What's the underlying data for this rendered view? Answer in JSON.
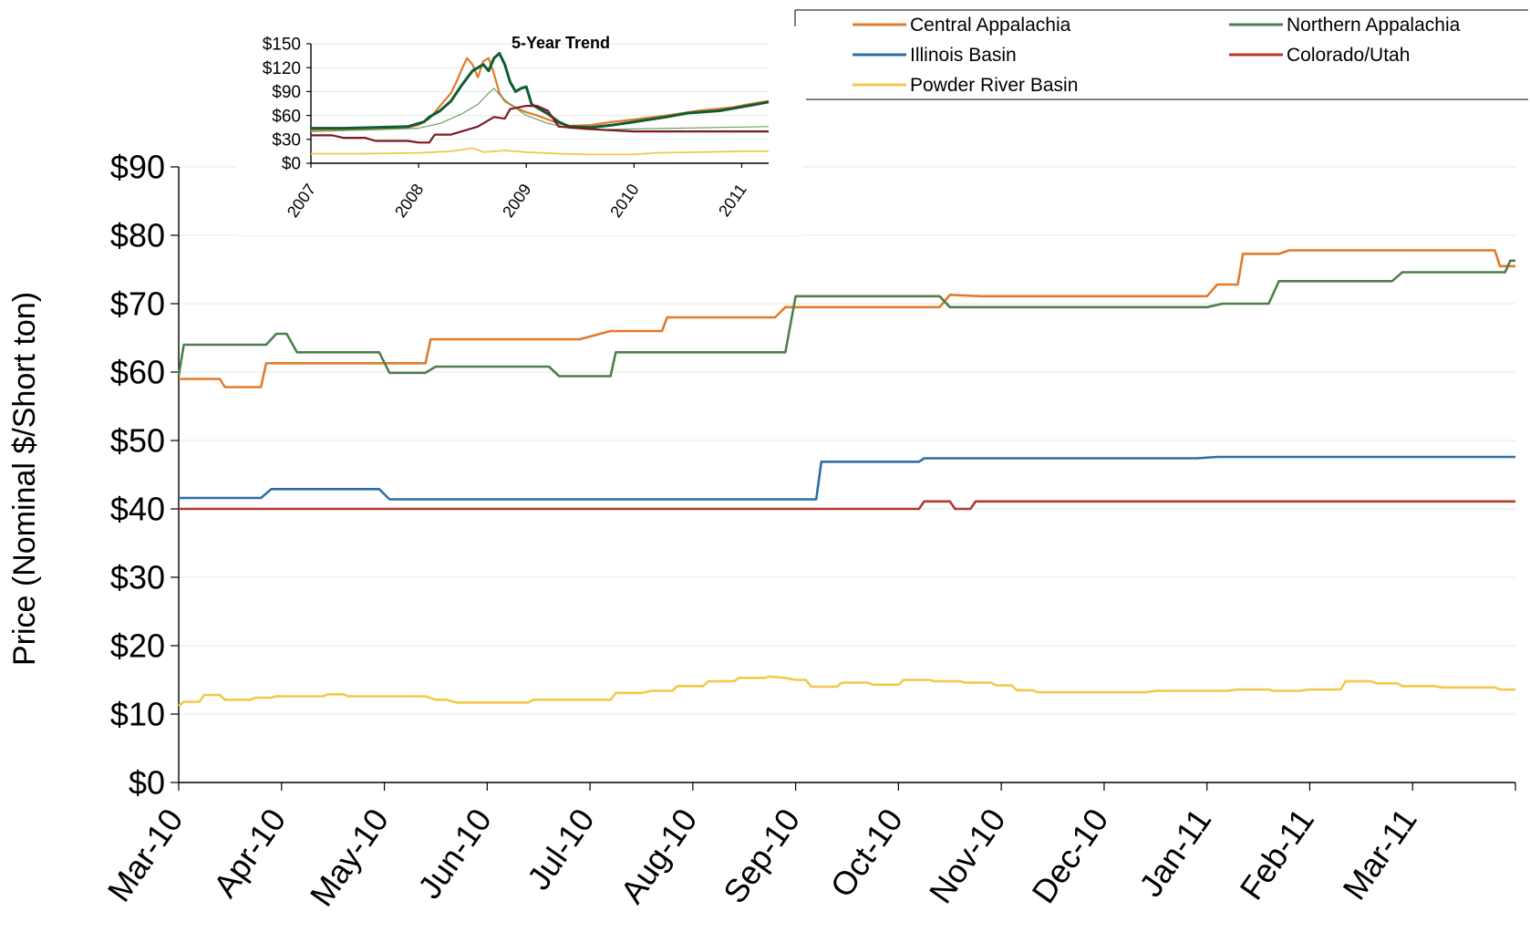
{
  "chart_data": [
    {
      "type": "line",
      "title": "",
      "xlabel": "",
      "ylabel": "Price (Nominal $/Short  ton)",
      "ylim": [
        0,
        90
      ],
      "yticks": [
        "$0",
        "$10",
        "$20",
        "$30",
        "$40",
        "$50",
        "$60",
        "$70",
        "$80",
        "$90"
      ],
      "categories": [
        "Mar-10",
        "Apr-10",
        "May-10",
        "Jun-10",
        "Jul-10",
        "Aug-10",
        "Sep-10",
        "Oct-10",
        "Nov-10",
        "Dec-10",
        "Jan-11",
        "Feb-11",
        "Mar-11"
      ],
      "xlim": [
        0,
        13
      ],
      "grid": true,
      "legend": "top-right",
      "series": [
        {
          "name": "Central Appalachia",
          "color": "#E07B2C",
          "points": [
            [
              0,
              59
            ],
            [
              0.4,
              59
            ],
            [
              0.45,
              57.8
            ],
            [
              0.8,
              57.8
            ],
            [
              0.85,
              61.3
            ],
            [
              2.4,
              61.3
            ],
            [
              2.45,
              64.8
            ],
            [
              3.9,
              64.8
            ],
            [
              4.2,
              66
            ],
            [
              4.7,
              66
            ],
            [
              4.75,
              68
            ],
            [
              5.8,
              68
            ],
            [
              5.9,
              69.5
            ],
            [
              7.4,
              69.5
            ],
            [
              7.5,
              71.3
            ],
            [
              7.8,
              71.1
            ],
            [
              10.0,
              71.1
            ],
            [
              10.1,
              72.8
            ],
            [
              10.3,
              72.8
            ],
            [
              10.35,
              77.3
            ],
            [
              10.7,
              77.3
            ],
            [
              10.8,
              77.8
            ],
            [
              12.8,
              77.8
            ],
            [
              12.85,
              75.5
            ],
            [
              13,
              75.5
            ]
          ]
        },
        {
          "name": "Northern Appalachia",
          "color": "#4E7F4A",
          "points": [
            [
              0,
              59.5
            ],
            [
              0.05,
              64
            ],
            [
              0.85,
              64
            ],
            [
              0.95,
              65.6
            ],
            [
              1.05,
              65.6
            ],
            [
              1.15,
              62.9
            ],
            [
              1.95,
              62.9
            ],
            [
              2.05,
              59.9
            ],
            [
              2.4,
              59.9
            ],
            [
              2.5,
              60.8
            ],
            [
              3.6,
              60.8
            ],
            [
              3.7,
              59.4
            ],
            [
              4.2,
              59.4
            ],
            [
              4.25,
              62.9
            ],
            [
              5.9,
              62.9
            ],
            [
              6.0,
              71.1
            ],
            [
              7.4,
              71.1
            ],
            [
              7.5,
              69.5
            ],
            [
              10.0,
              69.5
            ],
            [
              10.15,
              70
            ],
            [
              10.6,
              70
            ],
            [
              10.7,
              73.3
            ],
            [
              11.8,
              73.3
            ],
            [
              11.9,
              74.6
            ],
            [
              12.9,
              74.6
            ],
            [
              12.95,
              76.3
            ],
            [
              13,
              76.3
            ]
          ]
        },
        {
          "name": "Illinois Basin",
          "color": "#2E6DA4",
          "points": [
            [
              0,
              41.6
            ],
            [
              0.8,
              41.6
            ],
            [
              0.9,
              42.9
            ],
            [
              1.95,
              42.9
            ],
            [
              2.05,
              41.4
            ],
            [
              6.2,
              41.4
            ],
            [
              6.25,
              46.9
            ],
            [
              7.2,
              46.9
            ],
            [
              7.25,
              47.4
            ],
            [
              9.9,
              47.4
            ],
            [
              10.1,
              47.6
            ],
            [
              13,
              47.6
            ]
          ]
        },
        {
          "name": "Colorado/Utah",
          "color": "#B03A2E",
          "points": [
            [
              0,
              40
            ],
            [
              7.2,
              40
            ],
            [
              7.25,
              41.1
            ],
            [
              7.5,
              41.1
            ],
            [
              7.55,
              40
            ],
            [
              7.7,
              40
            ],
            [
              7.75,
              41.1
            ],
            [
              13,
              41.1
            ]
          ]
        },
        {
          "name": "Powder River Basin",
          "color": "#F2C84B",
          "points": [
            [
              0,
              11.2
            ],
            [
              0.05,
              11.8
            ],
            [
              0.2,
              11.8
            ],
            [
              0.25,
              12.8
            ],
            [
              0.4,
              12.8
            ],
            [
              0.45,
              12.1
            ],
            [
              0.7,
              12.1
            ],
            [
              0.75,
              12.4
            ],
            [
              0.9,
              12.4
            ],
            [
              0.95,
              12.6
            ],
            [
              1.4,
              12.6
            ],
            [
              1.45,
              12.9
            ],
            [
              1.6,
              12.9
            ],
            [
              1.65,
              12.6
            ],
            [
              2.4,
              12.6
            ],
            [
              2.5,
              12.1
            ],
            [
              2.6,
              12.1
            ],
            [
              2.7,
              11.7
            ],
            [
              3.4,
              11.7
            ],
            [
              3.45,
              12.1
            ],
            [
              4.2,
              12.1
            ],
            [
              4.25,
              13.1
            ],
            [
              4.5,
              13.1
            ],
            [
              4.6,
              13.4
            ],
            [
              4.8,
              13.4
            ],
            [
              4.85,
              14.1
            ],
            [
              5.1,
              14.1
            ],
            [
              5.15,
              14.8
            ],
            [
              5.4,
              14.8
            ],
            [
              5.45,
              15.3
            ],
            [
              5.7,
              15.3
            ],
            [
              5.75,
              15.5
            ],
            [
              5.9,
              15.3
            ],
            [
              6.0,
              15
            ],
            [
              6.1,
              15
            ],
            [
              6.15,
              14
            ],
            [
              6.4,
              14
            ],
            [
              6.45,
              14.6
            ],
            [
              6.7,
              14.6
            ],
            [
              6.75,
              14.3
            ],
            [
              7.0,
              14.3
            ],
            [
              7.05,
              15
            ],
            [
              7.3,
              15
            ],
            [
              7.35,
              14.8
            ],
            [
              7.6,
              14.8
            ],
            [
              7.65,
              14.6
            ],
            [
              7.9,
              14.6
            ],
            [
              7.95,
              14.2
            ],
            [
              8.1,
              14.2
            ],
            [
              8.15,
              13.5
            ],
            [
              8.3,
              13.5
            ],
            [
              8.35,
              13.2
            ],
            [
              9.4,
              13.2
            ],
            [
              9.5,
              13.4
            ],
            [
              10.2,
              13.4
            ],
            [
              10.3,
              13.6
            ],
            [
              10.6,
              13.6
            ],
            [
              10.65,
              13.4
            ],
            [
              10.9,
              13.4
            ],
            [
              11.0,
              13.6
            ],
            [
              11.3,
              13.6
            ],
            [
              11.35,
              14.8
            ],
            [
              11.6,
              14.8
            ],
            [
              11.65,
              14.5
            ],
            [
              11.85,
              14.5
            ],
            [
              11.9,
              14.1
            ],
            [
              12.2,
              14.1
            ],
            [
              12.3,
              13.9
            ],
            [
              12.8,
              13.9
            ],
            [
              12.85,
              13.6
            ],
            [
              13,
              13.6
            ]
          ]
        }
      ]
    },
    {
      "type": "line",
      "title": "5-Year Trend",
      "xlabel": "",
      "ylabel": "",
      "ylim": [
        0,
        150
      ],
      "yticks": [
        "$0",
        "$30",
        "$60",
        "$90",
        "$120",
        "$150"
      ],
      "categories": [
        "2007",
        "2008",
        "2009",
        "2010",
        "2011"
      ],
      "xlim": [
        0,
        4.25
      ],
      "grid": true,
      "series": [
        {
          "color": "#E07B2C",
          "width": 2.2,
          "points": [
            [
              0,
              42
            ],
            [
              0.3,
              42
            ],
            [
              0.6,
              44
            ],
            [
              0.9,
              45
            ],
            [
              1.0,
              48
            ],
            [
              1.1,
              56
            ],
            [
              1.2,
              72
            ],
            [
              1.3,
              88
            ],
            [
              1.35,
              102
            ],
            [
              1.4,
              118
            ],
            [
              1.45,
              132
            ],
            [
              1.5,
              124
            ],
            [
              1.55,
              108
            ],
            [
              1.6,
              128
            ],
            [
              1.65,
              132
            ],
            [
              1.7,
              112
            ],
            [
              1.75,
              88
            ],
            [
              1.8,
              78
            ],
            [
              1.9,
              70
            ],
            [
              2.0,
              64
            ],
            [
              2.1,
              60
            ],
            [
              2.2,
              55
            ],
            [
              2.3,
              50
            ],
            [
              2.4,
              47
            ],
            [
              2.6,
              48
            ],
            [
              2.8,
              52
            ],
            [
              3.0,
              55
            ],
            [
              3.3,
              60
            ],
            [
              3.6,
              66
            ],
            [
              3.9,
              70
            ],
            [
              4.1,
              75
            ],
            [
              4.25,
              78
            ]
          ]
        },
        {
          "color": "#0E5C32",
          "width": 3.0,
          "points": [
            [
              0,
              44
            ],
            [
              0.3,
              44
            ],
            [
              0.6,
              45
            ],
            [
              0.9,
              46
            ],
            [
              1.0,
              50
            ],
            [
              1.05,
              52
            ],
            [
              1.1,
              58
            ],
            [
              1.2,
              66
            ],
            [
              1.3,
              78
            ],
            [
              1.4,
              98
            ],
            [
              1.5,
              116
            ],
            [
              1.6,
              124
            ],
            [
              1.65,
              116
            ],
            [
              1.7,
              132
            ],
            [
              1.75,
              138
            ],
            [
              1.8,
              124
            ],
            [
              1.85,
              102
            ],
            [
              1.9,
              90
            ],
            [
              1.95,
              94
            ],
            [
              2.0,
              96
            ],
            [
              2.05,
              74
            ],
            [
              2.2,
              62
            ],
            [
              2.3,
              52
            ],
            [
              2.4,
              46
            ],
            [
              2.6,
              45
            ],
            [
              2.8,
              48
            ],
            [
              3.0,
              52
            ],
            [
              3.3,
              58
            ],
            [
              3.5,
              63
            ],
            [
              3.8,
              66
            ],
            [
              4.1,
              73
            ],
            [
              4.25,
              77
            ]
          ]
        },
        {
          "color": "#6F9E63",
          "width": 1.2,
          "points": [
            [
              0,
              40
            ],
            [
              0.6,
              42
            ],
            [
              1.0,
              44
            ],
            [
              1.2,
              50
            ],
            [
              1.4,
              62
            ],
            [
              1.55,
              74
            ],
            [
              1.65,
              88
            ],
            [
              1.7,
              94
            ],
            [
              1.75,
              86
            ],
            [
              1.85,
              74
            ],
            [
              2.0,
              60
            ],
            [
              2.2,
              50
            ],
            [
              2.4,
              44
            ],
            [
              2.6,
              42
            ],
            [
              3.0,
              43
            ],
            [
              3.4,
              44
            ],
            [
              3.8,
              45
            ],
            [
              4.25,
              46
            ]
          ]
        },
        {
          "color": "#7A1A24",
          "width": 2.2,
          "points": [
            [
              0,
              35
            ],
            [
              0.2,
              35
            ],
            [
              0.3,
              32
            ],
            [
              0.5,
              32
            ],
            [
              0.6,
              28
            ],
            [
              0.9,
              28
            ],
            [
              1.0,
              26
            ],
            [
              1.1,
              26
            ],
            [
              1.15,
              36
            ],
            [
              1.3,
              36
            ],
            [
              1.4,
              40
            ],
            [
              1.55,
              46
            ],
            [
              1.7,
              58
            ],
            [
              1.8,
              56
            ],
            [
              1.85,
              68
            ],
            [
              2.0,
              72
            ],
            [
              2.1,
              72
            ],
            [
              2.2,
              66
            ],
            [
              2.3,
              46
            ],
            [
              2.5,
              44
            ],
            [
              2.7,
              42
            ],
            [
              3.0,
              40
            ],
            [
              4.25,
              40
            ]
          ]
        },
        {
          "color": "#F2C84B",
          "width": 1.8,
          "points": [
            [
              0,
              12
            ],
            [
              0.5,
              12
            ],
            [
              1.0,
              13
            ],
            [
              1.3,
              15
            ],
            [
              1.5,
              19
            ],
            [
              1.6,
              14
            ],
            [
              1.8,
              16
            ],
            [
              2.0,
              14
            ],
            [
              2.3,
              12
            ],
            [
              2.6,
              11
            ],
            [
              3.0,
              11
            ],
            [
              3.2,
              13
            ],
            [
              3.6,
              14
            ],
            [
              4.0,
              15
            ],
            [
              4.25,
              15
            ]
          ]
        }
      ]
    }
  ]
}
